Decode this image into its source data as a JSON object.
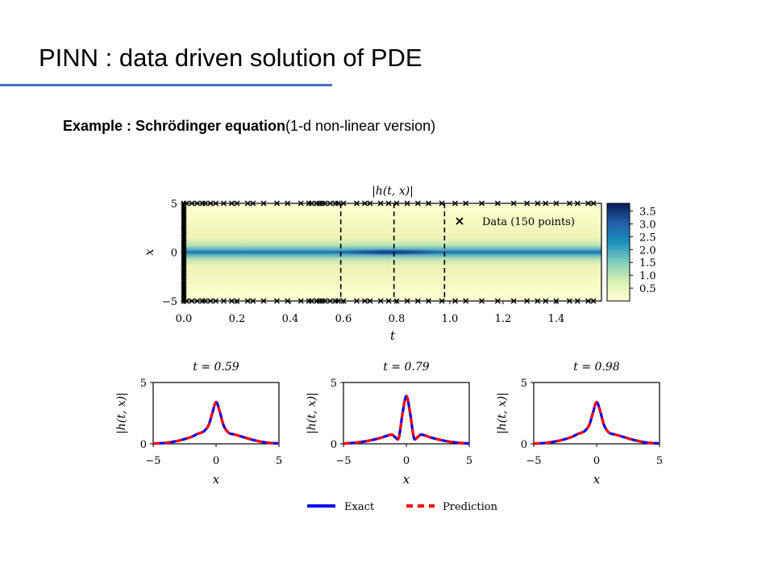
{
  "slide": {
    "title": "PINN : data driven solution of PDE",
    "subtitle_bold": "Example : Schrödinger equation",
    "subtitle_rest": "(1-d non-linear version)"
  },
  "colors": {
    "accent": "#4472c4",
    "exact": "#0000ff",
    "prediction": "#ff0000"
  },
  "chart_data": [
    {
      "type": "heatmap",
      "title": "|h(t, x)|",
      "xlabel": "t",
      "ylabel": "x",
      "xlim": [
        0,
        1.57
      ],
      "ylim": [
        -5,
        5
      ],
      "xticks": [
        "0.0",
        "0.2",
        "0.4",
        "0.6",
        "0.8",
        "1.0",
        "1.2",
        "1.4"
      ],
      "xtick_values": [
        0,
        0.2,
        0.4,
        0.6,
        0.8,
        1.0,
        1.2,
        1.4
      ],
      "yticks": [
        "−5",
        "0",
        "5"
      ],
      "ytick_values": [
        -5,
        0,
        5
      ],
      "colorbar_ticks": [
        "3.5",
        "3.0",
        "2.5",
        "2.0",
        "1.5",
        "1.0",
        "0.5"
      ],
      "colorbar_values": [
        3.5,
        3.0,
        2.5,
        2.0,
        1.5,
        1.0,
        0.5
      ],
      "colorbar_range": [
        0,
        3.8
      ],
      "legend": "Data (150 points)",
      "legend_position": "top-right",
      "slices_t": [
        0.59,
        0.79,
        0.98
      ],
      "data_points": {
        "t0_x": [
          -5.0,
          -4.8,
          -4.6,
          -4.4,
          -4.2,
          -4.0,
          -3.8,
          -3.6,
          -3.4,
          -3.2,
          -3.0,
          -2.8,
          -2.6,
          -2.4,
          -2.2,
          -2.0,
          -1.8,
          -1.6,
          -1.4,
          -1.2,
          -1.0,
          -0.8,
          -0.6,
          -0.4,
          -0.2,
          0.0,
          0.2,
          0.4,
          0.6,
          0.8,
          1.0,
          1.2,
          1.4,
          1.6,
          1.8,
          2.0,
          2.2,
          2.4,
          2.6,
          2.8,
          3.0,
          3.2,
          3.4,
          3.6,
          3.8,
          4.0,
          4.2,
          4.4,
          4.6,
          4.8
        ],
        "boundary_t": [
          0.0,
          0.01,
          0.03,
          0.05,
          0.07,
          0.08,
          0.1,
          0.12,
          0.15,
          0.18,
          0.2,
          0.24,
          0.26,
          0.3,
          0.35,
          0.39,
          0.44,
          0.47,
          0.48,
          0.5,
          0.51,
          0.52,
          0.53,
          0.55,
          0.57,
          0.58,
          0.6,
          0.65,
          0.68,
          0.7,
          0.74,
          0.77,
          0.8,
          0.84,
          0.88,
          0.92,
          0.97,
          1.02,
          1.06,
          1.12,
          1.18,
          1.24,
          1.29,
          1.33,
          1.36,
          1.4,
          1.45,
          1.48,
          1.52,
          1.54
        ]
      }
    },
    {
      "type": "line",
      "title": "t = 0.59",
      "xlabel": "x",
      "ylabel": "|h(t, x)|",
      "xlim": [
        -5,
        5
      ],
      "ylim": [
        0,
        5
      ],
      "xticks": [
        "−5",
        "0",
        "5"
      ],
      "yticks": [
        "0",
        "5"
      ],
      "x": [
        -5,
        -4,
        -3,
        -2,
        -1.5,
        -1,
        -0.6,
        -0.3,
        0,
        0.3,
        0.6,
        1,
        1.5,
        2,
        3,
        4,
        5
      ],
      "series": [
        {
          "name": "Exact",
          "values": [
            0.02,
            0.08,
            0.25,
            0.55,
            0.8,
            1.0,
            1.5,
            2.5,
            3.4,
            2.6,
            1.5,
            0.9,
            0.75,
            0.6,
            0.3,
            0.1,
            0.03
          ]
        },
        {
          "name": "Prediction",
          "values": [
            0.02,
            0.08,
            0.25,
            0.55,
            0.8,
            1.0,
            1.5,
            2.5,
            3.4,
            2.6,
            1.5,
            0.9,
            0.75,
            0.6,
            0.3,
            0.1,
            0.03
          ]
        }
      ]
    },
    {
      "type": "line",
      "title": "t = 0.79",
      "xlabel": "x",
      "ylabel": "|h(t, x)|",
      "xlim": [
        -5,
        5
      ],
      "ylim": [
        0,
        5
      ],
      "xticks": [
        "−5",
        "0",
        "5"
      ],
      "yticks": [
        "0",
        "5"
      ],
      "x": [
        -5,
        -4,
        -3,
        -2,
        -1.2,
        -0.9,
        -0.6,
        -0.3,
        0,
        0.3,
        0.6,
        0.9,
        1.2,
        2,
        3,
        4,
        5
      ],
      "series": [
        {
          "name": "Exact",
          "values": [
            0.02,
            0.1,
            0.25,
            0.5,
            0.75,
            0.55,
            0.5,
            2.5,
            3.9,
            2.5,
            0.5,
            0.55,
            0.75,
            0.5,
            0.25,
            0.1,
            0.02
          ]
        },
        {
          "name": "Prediction",
          "values": [
            0.02,
            0.1,
            0.25,
            0.5,
            0.75,
            0.55,
            0.5,
            2.5,
            3.9,
            2.5,
            0.5,
            0.55,
            0.75,
            0.5,
            0.25,
            0.1,
            0.02
          ]
        }
      ]
    },
    {
      "type": "line",
      "title": "t = 0.98",
      "xlabel": "x",
      "ylabel": "|h(t, x)|",
      "xlim": [
        -5,
        5
      ],
      "ylim": [
        0,
        5
      ],
      "xticks": [
        "−5",
        "0",
        "5"
      ],
      "yticks": [
        "0",
        "5"
      ],
      "x": [
        -5,
        -4,
        -3,
        -2,
        -1.5,
        -1,
        -0.6,
        -0.3,
        0,
        0.3,
        0.6,
        1,
        1.5,
        2,
        3,
        4,
        5
      ],
      "series": [
        {
          "name": "Exact",
          "values": [
            0.02,
            0.08,
            0.25,
            0.55,
            0.8,
            1.0,
            1.5,
            2.5,
            3.4,
            2.6,
            1.5,
            0.9,
            0.75,
            0.6,
            0.3,
            0.1,
            0.03
          ]
        },
        {
          "name": "Prediction",
          "values": [
            0.02,
            0.08,
            0.25,
            0.55,
            0.8,
            1.0,
            1.5,
            2.5,
            3.4,
            2.6,
            1.5,
            0.9,
            0.75,
            0.6,
            0.3,
            0.1,
            0.03
          ]
        }
      ]
    }
  ],
  "bottom_legend": {
    "exact": "Exact",
    "prediction": "Prediction",
    "position": "bottom-center"
  }
}
